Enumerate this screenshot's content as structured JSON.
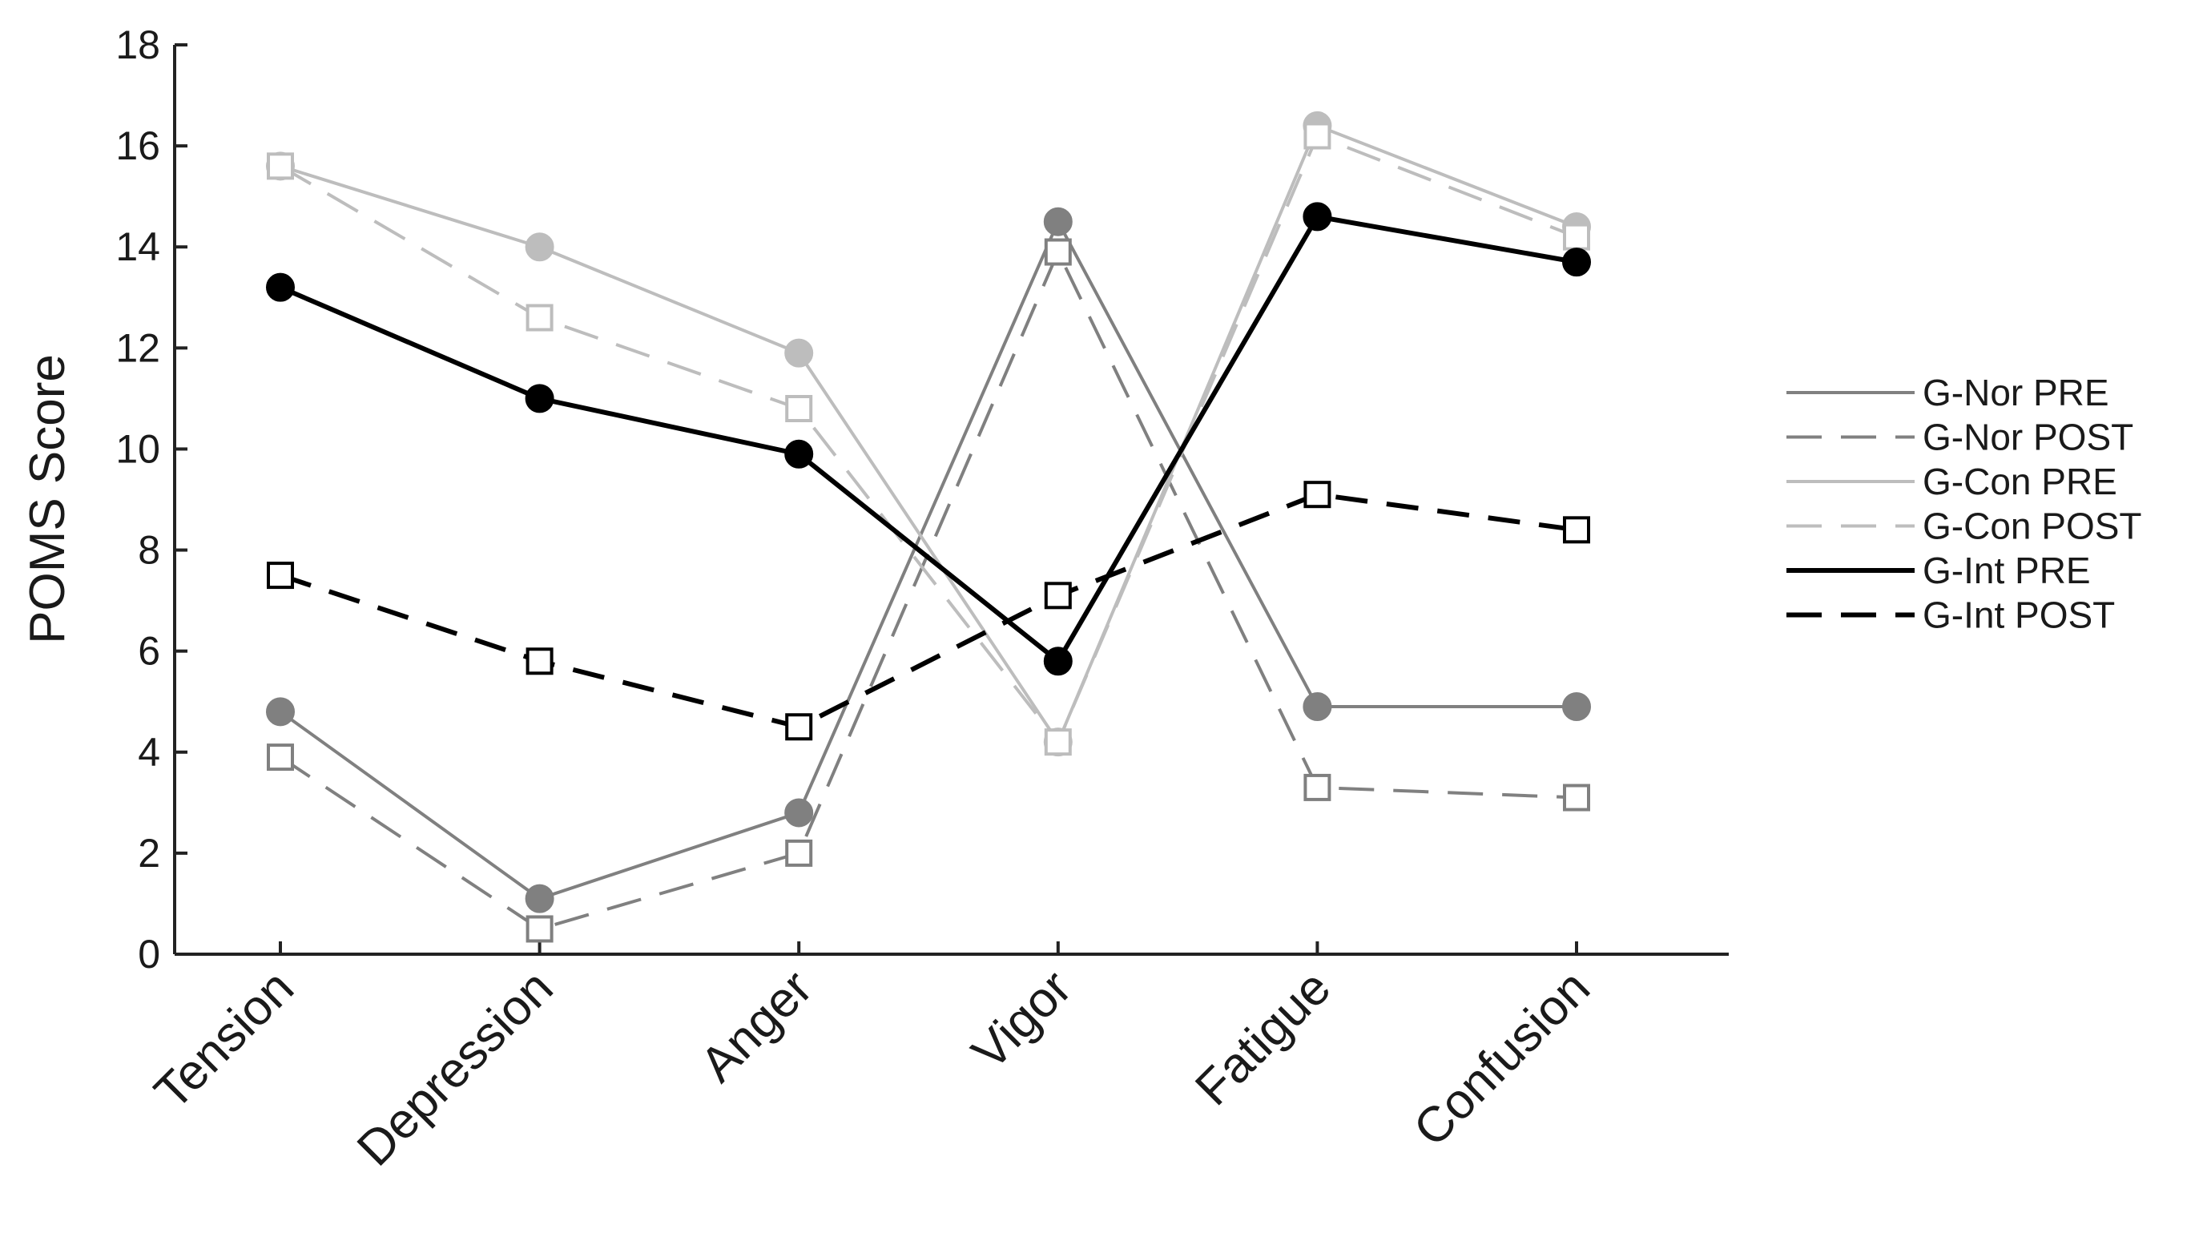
{
  "chart_data": {
    "type": "line",
    "title": "",
    "xlabel": "",
    "ylabel": "POMS Score",
    "ylim": [
      0,
      18
    ],
    "yticks": [
      0,
      2,
      4,
      6,
      8,
      10,
      12,
      14,
      16,
      18
    ],
    "categories": [
      "Tension",
      "Depression",
      "Anger",
      "Vigor",
      "Fatigue",
      "Confusion"
    ],
    "grid": false,
    "legend_position": "right",
    "series": [
      {
        "name": "G-Nor PRE",
        "values": [
          4.8,
          1.1,
          2.8,
          14.5,
          4.9,
          4.9
        ],
        "color": "#808080",
        "marker": "circle",
        "dash": "solid"
      },
      {
        "name": "G-Nor POST",
        "values": [
          3.9,
          0.5,
          2.0,
          13.9,
          3.3,
          3.1
        ],
        "color": "#808080",
        "marker": "square",
        "dash": "dashed"
      },
      {
        "name": "G-Con PRE",
        "values": [
          15.6,
          14.0,
          11.9,
          4.2,
          16.4,
          14.4
        ],
        "color": "#bdbdbd",
        "marker": "circle",
        "dash": "solid"
      },
      {
        "name": "G-Con POST",
        "values": [
          15.6,
          12.6,
          10.8,
          4.2,
          16.2,
          14.2
        ],
        "color": "#bdbdbd",
        "marker": "square",
        "dash": "dashed"
      },
      {
        "name": "G-Int PRE",
        "values": [
          13.2,
          11.0,
          9.9,
          5.8,
          14.6,
          13.7
        ],
        "color": "#000000",
        "marker": "circle",
        "dash": "solid"
      },
      {
        "name": "G-Int POST",
        "values": [
          7.5,
          5.8,
          4.5,
          7.1,
          9.1,
          8.4
        ],
        "color": "#000000",
        "marker": "square",
        "dash": "dashed"
      }
    ]
  }
}
